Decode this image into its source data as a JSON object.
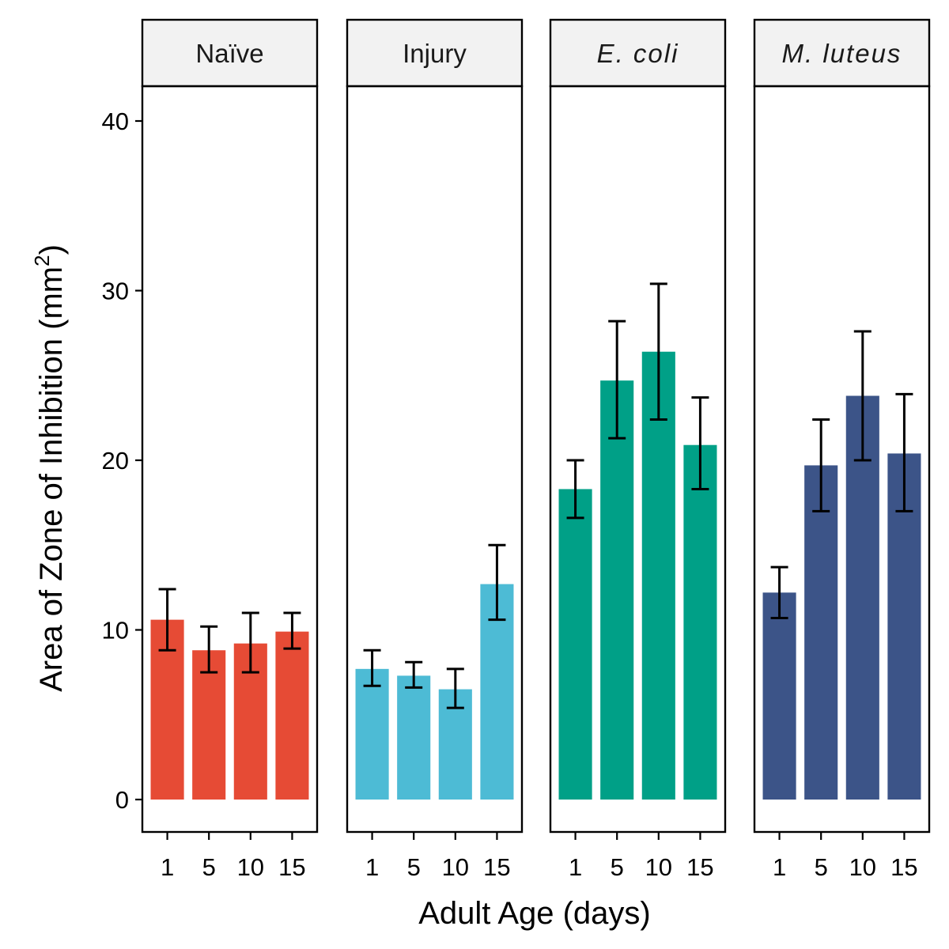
{
  "chart_data": {
    "type": "bar",
    "facet_labels": [
      {
        "name": "Naïve",
        "italic": false
      },
      {
        "name": "Injury",
        "italic": false
      },
      {
        "name": "E. coli",
        "italic": true
      },
      {
        "name": "M. luteus",
        "italic": true
      }
    ],
    "categories": [
      "1",
      "5",
      "10",
      "15"
    ],
    "series": [
      {
        "facet": "Naïve",
        "color": "#E64B35",
        "values": [
          10.6,
          8.8,
          9.2,
          9.9
        ],
        "error_low": [
          8.8,
          7.5,
          7.5,
          8.9
        ],
        "error_high": [
          12.4,
          10.2,
          11.0,
          11.0
        ]
      },
      {
        "facet": "Injury",
        "color": "#4DBBD5",
        "values": [
          7.7,
          7.3,
          6.5,
          12.7
        ],
        "error_low": [
          6.7,
          6.6,
          5.4,
          10.6
        ],
        "error_high": [
          8.8,
          8.1,
          7.7,
          15.0
        ]
      },
      {
        "facet": "E. coli",
        "color": "#00A087",
        "values": [
          18.3,
          24.7,
          26.4,
          20.9
        ],
        "error_low": [
          16.6,
          21.3,
          22.4,
          18.3
        ],
        "error_high": [
          20.0,
          28.2,
          30.4,
          23.7
        ]
      },
      {
        "facet": "M. luteus",
        "color": "#3C5488",
        "values": [
          12.2,
          19.7,
          23.8,
          20.4
        ],
        "error_low": [
          10.7,
          17.0,
          20.0,
          17.0
        ],
        "error_high": [
          13.7,
          22.4,
          27.6,
          23.9
        ]
      }
    ],
    "xlabel": "Adult Age (days)",
    "ylabel": "Area of Zone of Inhibition (mm",
    "ylabel_superscript": "2",
    "ylabel_close": ")",
    "yticks": [
      0,
      10,
      20,
      30,
      40
    ],
    "ylim": [
      -2,
      43
    ],
    "grid": false,
    "legend": "none"
  }
}
